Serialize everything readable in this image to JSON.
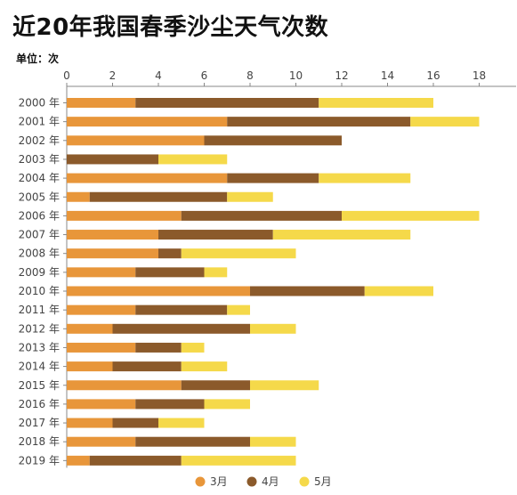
{
  "title": "近20年我国春季沙尘天气次数",
  "unit_label": "单位：次",
  "chart_data": {
    "type": "bar",
    "orientation": "horizontal",
    "stacked": true,
    "title": "近20年我国春季沙尘天气次数",
    "categories": [
      "2000 年",
      "2001 年",
      "2002 年",
      "2003 年",
      "2004 年",
      "2005 年",
      "2006 年",
      "2007 年",
      "2008 年",
      "2009 年",
      "2010 年",
      "2011 年",
      "2012 年",
      "2013 年",
      "2014 年",
      "2015 年",
      "2016 年",
      "2017 年",
      "2018 年",
      "2019 年"
    ],
    "series": [
      {
        "name": "3月",
        "color": "#E8963A",
        "values": [
          3,
          7,
          6,
          0,
          7,
          1,
          5,
          4,
          4,
          3,
          8,
          3,
          2,
          3,
          2,
          5,
          3,
          2,
          3,
          1
        ]
      },
      {
        "name": "4月",
        "color": "#8B5A2B",
        "values": [
          8,
          8,
          6,
          4,
          4,
          6,
          7,
          5,
          1,
          3,
          5,
          4,
          6,
          2,
          3,
          3,
          3,
          2,
          5,
          4
        ]
      },
      {
        "name": "5月",
        "color": "#F5D94A",
        "values": [
          5,
          3,
          0,
          3,
          4,
          2,
          6,
          6,
          5,
          1,
          3,
          1,
          2,
          1,
          2,
          3,
          2,
          2,
          2,
          5
        ]
      }
    ],
    "xlim": [
      0,
      19
    ],
    "xticks": [
      0,
      2,
      4,
      6,
      8,
      10,
      12,
      14,
      16,
      18
    ],
    "legend_position": "bottom",
    "grid": false
  }
}
